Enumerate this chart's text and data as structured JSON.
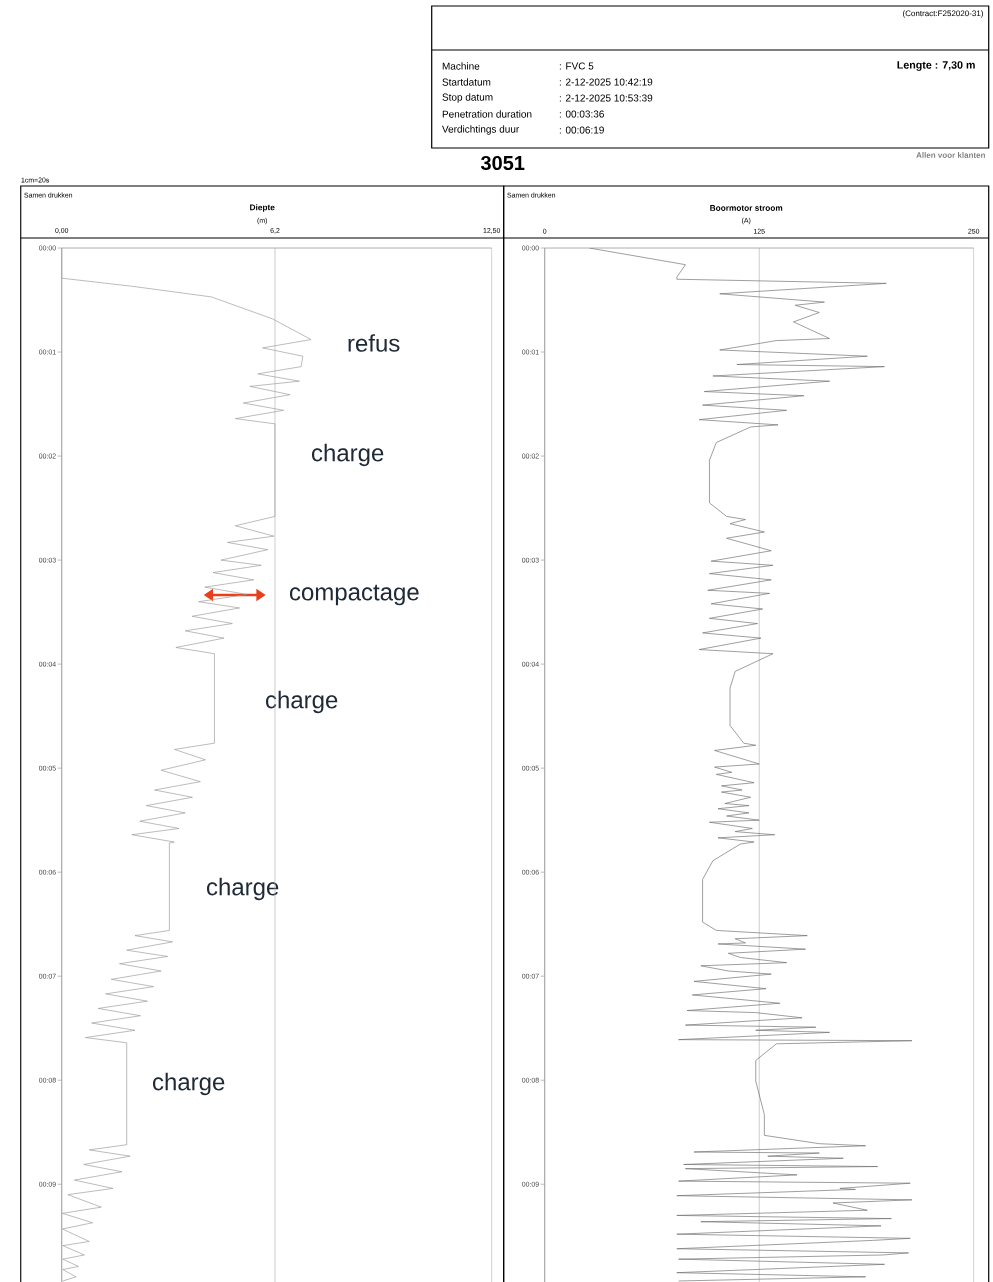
{
  "chart_data": [
    {
      "type": "line",
      "title": "Diepte",
      "xlabel": "(m)",
      "annotations": [
        "(Contract:F252020-31)",
        "Machine",
        ": FVC 5",
        "Startdatum",
        ": 2-12-2025 10:42:19",
        "Stop datum",
        ": 2-12-2025 10:53:39",
        "Penetration duration",
        ": 00:03:36",
        "Verdichtings duur",
        ": 00:06:19",
        "Lengte : 7,30 m",
        "3051",
        "Allen voor klanten",
        "1cm=20s",
        "Samen drukken",
        "refus",
        "charge",
        "compactage",
        "charge",
        "charge",
        "charge"
      ],
      "series": [
        {
          "color": "#9a9a9a",
          "x": [
            0,
            0,
            2.1,
            4.35,
            6.12,
            7.25,
            5.84,
            7.01,
            6.96,
            5.7,
            6.91,
            5.47,
            6.64,
            5.28,
            6.45,
            5.05,
            6.2,
            6.2,
            5.05,
            6.17,
            4.82,
            5.99,
            4.63,
            5.8,
            4.4,
            5.58,
            4.16,
            5.38,
            3.98,
            5.17,
            3.79,
            4.96,
            3.59,
            4.72,
            3.32,
            4.44,
            4.44,
            3.28,
            4.18,
            2.89,
            4.03,
            2.7,
            3.8,
            2.46,
            3.59,
            2.27,
            3.41,
            2.04,
            3.27,
            3.13,
            3.13,
            2.13,
            3.22,
            1.89,
            3.08,
            1.68,
            2.89,
            1.44,
            2.67,
            1.28,
            2.49,
            1.06,
            2.29,
            0.87,
            2.13,
            0.69,
            1.89,
            1.89,
            0.8,
            1.99,
            0.64,
            1.75,
            0.37,
            1.49,
            0.18,
            1.15,
            0.02,
            0.9,
            0.02,
            0.8,
            0.03,
            0.66,
            0.03,
            0.49,
            0.03,
            0.42,
            0.03
          ],
          "values": [
            0,
            0.29,
            0.37,
            0.47,
            0.68,
            0.88,
            0.96,
            1.04,
            1.14,
            1.21,
            1.28,
            1.33,
            1.41,
            1.49,
            1.56,
            1.64,
            1.69,
            2.58,
            2.67,
            2.77,
            2.83,
            2.9,
            3.0,
            3.05,
            3.12,
            3.19,
            3.26,
            3.33,
            3.4,
            3.46,
            3.54,
            3.61,
            3.68,
            3.75,
            3.84,
            3.9,
            4.76,
            4.82,
            4.92,
            5.02,
            5.13,
            5.21,
            5.28,
            5.36,
            5.43,
            5.51,
            5.58,
            5.64,
            5.71,
            5.72,
            6.56,
            6.61,
            6.67,
            6.75,
            6.81,
            6.88,
            6.95,
            7.03,
            7.1,
            7.17,
            7.24,
            7.31,
            7.38,
            7.45,
            7.52,
            7.59,
            7.64,
            8.62,
            8.67,
            8.73,
            8.81,
            8.88,
            8.96,
            9.04,
            9.1,
            9.22,
            9.28,
            9.37,
            9.43,
            9.55,
            9.59,
            9.68,
            9.72,
            9.79,
            9.82,
            9.89,
            9.93
          ]
        }
      ],
      "xlim": [
        0,
        12.5
      ],
      "xticks": [
        {
          "value": 0,
          "label": "0,00"
        },
        {
          "value": 6.2,
          "label": "6,2"
        },
        {
          "value": 12.5,
          "label": "12,50"
        }
      ],
      "ylim": [
        9.94,
        0
      ],
      "yticks": [
        {
          "value": 0,
          "label": "00:00"
        },
        {
          "value": 1,
          "label": "00:01"
        },
        {
          "value": 2,
          "label": "00:02"
        },
        {
          "value": 3,
          "label": "00:03"
        },
        {
          "value": 4,
          "label": "00:04"
        },
        {
          "value": 5,
          "label": "00:05"
        },
        {
          "value": 6,
          "label": "00:06"
        },
        {
          "value": 7,
          "label": "00:07"
        },
        {
          "value": 8,
          "label": "00:08"
        },
        {
          "value": 9,
          "label": "00:09"
        }
      ],
      "grid": "x"
    },
    {
      "type": "line",
      "title": "Boormotor stroom",
      "xlabel": "(A)",
      "annotations": [
        "Samen drukken"
      ],
      "series": [
        {
          "color": "#6e6e6e",
          "x": [
            26,
            82,
            77,
            77,
            199,
            102,
            163,
            146,
            160,
            145,
            166,
            135,
            102,
            188,
            112,
            198,
            98,
            166,
            93,
            151,
            92,
            141,
            90,
            136,
            120,
            100,
            96,
            96,
            106,
            117,
            108,
            128,
            106,
            132,
            97,
            133,
            96,
            132,
            95,
            131,
            97,
            127,
            96,
            124,
            92,
            126,
            90,
            133,
            111,
            108,
            108,
            116,
            123,
            99,
            125,
            99,
            109,
            100,
            122,
            103,
            115,
            103,
            120,
            105,
            119,
            101,
            119,
            106,
            125,
            96,
            121,
            111,
            134,
            101,
            122,
            114,
            98,
            92,
            92,
            100,
            153,
            111,
            117,
            101,
            152,
            107,
            114,
            141,
            91,
            107,
            132,
            87,
            129,
            86,
            137,
            83,
            123,
            150,
            82,
            158,
            123,
            166,
            78,
            214,
            135,
            123,
            123,
            128,
            128,
            160,
            187,
            87,
            160,
            130,
            174,
            81,
            194,
            82,
            147,
            78,
            213,
            172,
            181,
            77,
            214,
            168,
            188,
            77,
            202,
            91,
            196,
            77,
            213,
            191,
            77,
            212,
            197,
            78,
            198,
            77,
            187,
            78
          ],
          "values": [
            0,
            0.16,
            0.28,
            0.3,
            0.34,
            0.44,
            0.52,
            0.55,
            0.62,
            0.71,
            0.87,
            0.89,
            0.98,
            1.04,
            1.12,
            1.14,
            1.23,
            1.28,
            1.38,
            1.42,
            1.51,
            1.56,
            1.65,
            1.7,
            1.72,
            1.87,
            2.04,
            2.45,
            2.58,
            2.61,
            2.65,
            2.73,
            2.79,
            2.91,
            3.01,
            3.05,
            3.13,
            3.19,
            3.29,
            3.32,
            3.42,
            3.47,
            3.56,
            3.61,
            3.7,
            3.75,
            3.86,
            3.9,
            4.07,
            4.23,
            4.59,
            4.76,
            4.78,
            4.83,
            4.96,
            4.99,
            5.04,
            5.06,
            5.14,
            5.17,
            5.21,
            5.23,
            5.28,
            5.34,
            5.36,
            5.39,
            5.43,
            5.46,
            5.5,
            5.52,
            5.58,
            5.61,
            5.64,
            5.67,
            5.71,
            5.73,
            5.89,
            6.07,
            6.48,
            6.56,
            6.61,
            6.64,
            6.68,
            6.69,
            6.74,
            6.78,
            6.82,
            6.87,
            6.9,
            6.95,
            6.98,
            7.05,
            7.12,
            7.18,
            7.26,
            7.33,
            7.35,
            7.4,
            7.47,
            7.49,
            7.52,
            7.54,
            7.61,
            7.62,
            7.65,
            7.81,
            8.01,
            8.33,
            8.53,
            8.61,
            8.63,
            8.69,
            8.7,
            8.73,
            8.75,
            8.81,
            8.83,
            8.85,
            8.91,
            8.97,
            8.99,
            9.04,
            9.05,
            9.11,
            9.15,
            9.18,
            9.25,
            9.3,
            9.33,
            9.36,
            9.4,
            9.48,
            9.52,
            9.54,
            9.62,
            9.66,
            9.68,
            9.72,
            9.77,
            9.85,
            9.89,
            9.93
          ]
        }
      ],
      "xlim": [
        0,
        250
      ],
      "xticks": [
        0,
        125,
        250
      ],
      "ylim": [
        9.94,
        0
      ],
      "yticks": [
        {
          "value": 0,
          "label": "00:00"
        },
        {
          "value": 1,
          "label": "00:01"
        },
        {
          "value": 2,
          "label": "00:02"
        },
        {
          "value": 3,
          "label": "00:03"
        },
        {
          "value": 4,
          "label": "00:04"
        },
        {
          "value": 5,
          "label": "00:05"
        },
        {
          "value": 6,
          "label": "00:06"
        },
        {
          "value": 7,
          "label": "00:07"
        },
        {
          "value": 8,
          "label": "00:08"
        },
        {
          "value": 9,
          "label": "00:09"
        }
      ],
      "grid": "x"
    }
  ]
}
